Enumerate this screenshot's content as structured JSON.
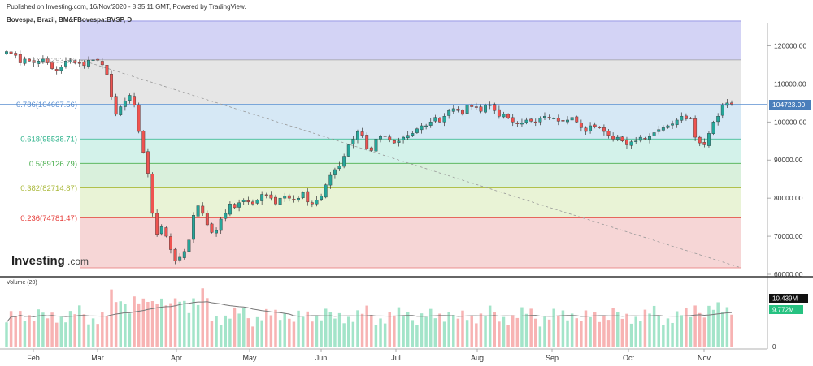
{
  "header": {
    "published": "Published on Investing.com, 16/Nov/2020 - 8:35:11 GMT, Powered by TradingView.",
    "symbol": "Bovespa, Brazil, BM&FBovespa:BVSP, D"
  },
  "logo": {
    "text": "Investing",
    "suffix": ".com"
  },
  "colors": {
    "up": "#26a69a",
    "down": "#ef5350",
    "vol_up": "#a3e4c9",
    "vol_down": "#f7b3b3"
  },
  "chart_data": [
    {
      "type": "candlestick",
      "title": "Bovespa, Brazil, BM&FBovespa:BVSP, D",
      "y_ticks": [
        "120000.00",
        "110000.00",
        "100000.00",
        "90000.00",
        "80000.00",
        "70000.00",
        "60000.00"
      ],
      "ylim": [
        60000,
        125000
      ],
      "x_ticks": [
        "Feb",
        "Mar",
        "Apr",
        "May",
        "Jun",
        "Jul",
        "Aug",
        "Sep",
        "Oct",
        "Nov"
      ],
      "last_price": "104723.00",
      "fibonacci": [
        {
          "label": "1(116293.96)",
          "value": 116293.96,
          "color": "#9e9e9e",
          "fill": "#e6e6e6"
        },
        {
          "label": "0.786(104667.56)",
          "value": 104667.56,
          "color": "#5b8fd0",
          "fill": "#d6e8f5"
        },
        {
          "label": "0.618(95538.71)",
          "value": 95538.71,
          "color": "#2bb28a",
          "fill": "#d3f2ea"
        },
        {
          "label": "0.5(89126.79)",
          "value": 89126.79,
          "color": "#4caf50",
          "fill": "#d9f0dc"
        },
        {
          "label": "0.382(82714.87)",
          "value": 82714.87,
          "color": "#a9b838",
          "fill": "#e9f3d6"
        },
        {
          "label": "0.236(74781.47)",
          "value": 74781.47,
          "color": "#e53935",
          "fill": "#f6d6d6"
        }
      ],
      "fib_low": 61700,
      "fib_top_band": 126500,
      "close_series": [
        118500,
        118000,
        117500,
        115500,
        116500,
        116000,
        115500,
        116000,
        116500,
        115500,
        114000,
        113500,
        114500,
        116000,
        116200,
        115500,
        115500,
        114800,
        116200,
        116300,
        116200,
        115000,
        112500,
        106500,
        102000,
        104000,
        105500,
        107000,
        104500,
        97500,
        92000,
        86500,
        76000,
        70500,
        72500,
        70000,
        66500,
        63500,
        64500,
        66000,
        69000,
        75500,
        78000,
        76000,
        73000,
        71000,
        71500,
        74500,
        76000,
        78500,
        77500,
        78800,
        79500,
        79000,
        78500,
        79500,
        81000,
        80800,
        80000,
        78500,
        80000,
        80500,
        80000,
        79500,
        80000,
        81500,
        79000,
        78500,
        79500,
        80500,
        83500,
        86000,
        87500,
        88500,
        91000,
        94000,
        95500,
        97500,
        96500,
        93000,
        92500,
        95500,
        96200,
        96300,
        95200,
        94500,
        95000,
        96000,
        96500,
        97000,
        98200,
        99000,
        99000,
        100000,
        101200,
        100000,
        101500,
        103000,
        103500,
        103000,
        102000,
        104500,
        104000,
        103800,
        102800,
        104500,
        104500,
        103000,
        101500,
        102000,
        101000,
        100000,
        99500,
        99800,
        100500,
        100200,
        100000,
        101000,
        101500,
        101000,
        101000,
        100200,
        100200,
        100500,
        101200,
        100000,
        98500,
        97500,
        99000,
        98800,
        98500,
        97500,
        96500,
        95500,
        96000,
        95000,
        94000,
        94800,
        95000,
        96000,
        95500,
        96200,
        97200,
        98000,
        98500,
        99000,
        99500,
        100500,
        101500,
        100800,
        101000,
        96000,
        94500,
        94000,
        97000,
        100000,
        101500,
        104500,
        105000,
        104700
      ],
      "volume": {
        "label": "Volume (20)",
        "y_ticks": [
          "10.439M",
          "9.772M",
          "0"
        ],
        "ylim": [
          0,
          14
        ]
      }
    }
  ]
}
